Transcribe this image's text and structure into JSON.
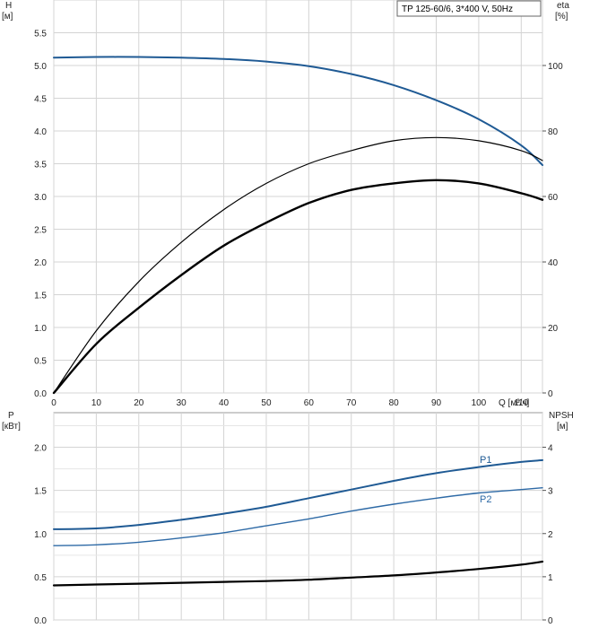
{
  "chart_data": [
    {
      "type": "line",
      "title": "TP 125-60/6, 3*400 V, 50Hz",
      "ylabel": "H",
      "ylabel_unit": "[м]",
      "y2label": "eta",
      "y2label_unit": "[%]",
      "xlabel": "Q [м³/ч]",
      "xlim": [
        0,
        115
      ],
      "ylim": [
        0,
        6
      ],
      "y2lim": [
        0,
        120
      ],
      "x_ticks": [
        0,
        10,
        20,
        30,
        40,
        50,
        60,
        70,
        80,
        90,
        100,
        110
      ],
      "y_ticks": [
        "0.0",
        "0.5",
        "1.0",
        "1.5",
        "2.0",
        "2.5",
        "3.0",
        "3.5",
        "4.0",
        "4.5",
        "5.0",
        "5.5"
      ],
      "y2_ticks": [
        0,
        20,
        40,
        60,
        80,
        100
      ],
      "grid": true,
      "series": [
        {
          "color": "#1f5a94",
          "axis": "left",
          "x": [
            0,
            10,
            20,
            30,
            40,
            50,
            60,
            70,
            80,
            90,
            100,
            110,
            115
          ],
          "y": [
            5.12,
            5.13,
            5.13,
            5.12,
            5.1,
            5.06,
            4.99,
            4.87,
            4.7,
            4.47,
            4.18,
            3.78,
            3.48
          ]
        },
        {
          "color": "#000000",
          "axis": "right",
          "x": [
            0,
            10,
            20,
            30,
            40,
            50,
            60,
            70,
            80,
            90,
            100,
            110,
            115
          ],
          "y": [
            0,
            19,
            34,
            46,
            56,
            64,
            70,
            74,
            77,
            78,
            77,
            74,
            71
          ]
        },
        {
          "color": "#000000",
          "axis": "right",
          "x": [
            0,
            10,
            20,
            30,
            40,
            50,
            60,
            70,
            80,
            90,
            100,
            110,
            115
          ],
          "y": [
            0,
            15,
            26,
            36,
            45,
            52,
            58,
            62,
            64,
            65,
            64,
            61,
            59
          ]
        }
      ]
    },
    {
      "type": "line",
      "ylabel": "P",
      "ylabel_unit": "[кВт]",
      "y2label": "NPSH",
      "y2label_unit": "[м]",
      "xlim": [
        0,
        115
      ],
      "ylim": [
        0,
        2.4
      ],
      "y2lim": [
        0,
        4.8
      ],
      "x_ticks": [
        0,
        10,
        20,
        30,
        40,
        50,
        60,
        70,
        80,
        90,
        100,
        110
      ],
      "y_ticks": [
        "0.0",
        "0.5",
        "1.0",
        "1.5",
        "2.0"
      ],
      "y2_ticks": [
        0,
        1,
        2,
        3,
        4
      ],
      "grid": true,
      "series": [
        {
          "name": "P1",
          "color": "#1f5a94",
          "axis": "left",
          "x": [
            0,
            10,
            20,
            30,
            40,
            50,
            60,
            70,
            80,
            90,
            100,
            110,
            115
          ],
          "y": [
            1.05,
            1.06,
            1.1,
            1.16,
            1.23,
            1.31,
            1.41,
            1.51,
            1.61,
            1.7,
            1.77,
            1.83,
            1.85
          ]
        },
        {
          "name": "P2",
          "color": "#2e6aa6",
          "axis": "left",
          "x": [
            0,
            10,
            20,
            30,
            40,
            50,
            60,
            70,
            80,
            90,
            100,
            110,
            115
          ],
          "y": [
            0.86,
            0.87,
            0.9,
            0.95,
            1.01,
            1.09,
            1.17,
            1.26,
            1.34,
            1.41,
            1.47,
            1.51,
            1.53
          ]
        },
        {
          "color": "#000000",
          "axis": "right",
          "x": [
            0,
            10,
            20,
            30,
            40,
            50,
            60,
            70,
            80,
            90,
            100,
            110,
            115
          ],
          "y": [
            0.8,
            0.82,
            0.84,
            0.86,
            0.88,
            0.9,
            0.93,
            0.98,
            1.03,
            1.1,
            1.18,
            1.28,
            1.35
          ]
        }
      ]
    }
  ]
}
